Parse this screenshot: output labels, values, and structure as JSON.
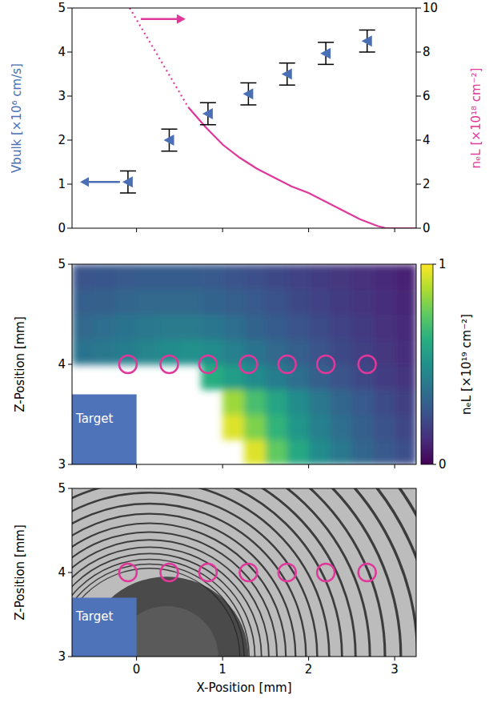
{
  "chart_data": [
    {
      "type": "scatter",
      "xlim": [
        -0.75,
        3.25
      ],
      "xticks": [
        0,
        1,
        2,
        3
      ],
      "tick_labels": "y",
      "ylabel": "Vbulk [×10⁶ cm/s]",
      "ylim": [
        0,
        5
      ],
      "yticks": [
        0,
        1,
        2,
        3,
        4,
        5
      ],
      "y2label": "nₑL [×10¹⁸ cm⁻²]",
      "y2lim": [
        0,
        10
      ],
      "y2ticks": [
        0,
        2,
        4,
        6,
        8,
        10
      ],
      "series": [
        {
          "type": "scatter",
          "color": "#4a6fb5",
          "marker": "triangle-left",
          "x": [
            -0.1,
            0.38,
            0.83,
            1.3,
            1.75,
            2.2,
            2.68
          ],
          "values": [
            1.05,
            2.0,
            2.6,
            3.05,
            3.5,
            3.97,
            4.25
          ],
          "error": [
            0.25,
            0.25,
            0.25,
            0.25,
            0.25,
            0.25,
            0.25
          ]
        },
        {
          "type": "line",
          "axis": "y2",
          "color": "#e0389a",
          "line_style": "dotted",
          "x": [
            -0.08,
            0.6
          ],
          "values": [
            10,
            5.5
          ]
        },
        {
          "type": "line",
          "axis": "y2",
          "color": "#e0389a",
          "line_style": "solid",
          "x": [
            0.6,
            0.8,
            1.0,
            1.2,
            1.4,
            1.6,
            1.8,
            2.0,
            2.2,
            2.4,
            2.6,
            2.8,
            2.9,
            3.25
          ],
          "values": [
            5.5,
            4.6,
            3.8,
            3.2,
            2.7,
            2.3,
            1.9,
            1.6,
            1.2,
            0.8,
            0.4,
            0.1,
            0,
            0
          ]
        }
      ]
    },
    {
      "type": "heatmap",
      "xlim": [
        -0.75,
        3.25
      ],
      "xticks": [
        0,
        1,
        2,
        3
      ],
      "ylim": [
        3,
        5
      ],
      "yticks": [
        3,
        4,
        5
      ],
      "tick_labels": "y",
      "ylabel": "Z-Position [mm]",
      "x": [
        -0.625,
        -0.375,
        -0.125,
        0.125,
        0.375,
        0.625,
        0.875,
        1.125,
        1.375,
        1.625,
        1.875,
        2.125,
        2.375,
        2.625,
        2.875,
        3.125
      ],
      "y": [
        3.125,
        3.375,
        3.625,
        3.875,
        4.125,
        4.375,
        4.625,
        4.875
      ],
      "values": [
        [
          null,
          null,
          null,
          null,
          null,
          null,
          null,
          null,
          0.95,
          0.75,
          0.6,
          0.48,
          0.4,
          0.33,
          0.28,
          0.24
        ],
        [
          null,
          null,
          null,
          null,
          null,
          null,
          null,
          0.95,
          0.8,
          0.65,
          0.52,
          0.43,
          0.36,
          0.3,
          0.25,
          0.21
        ],
        [
          null,
          null,
          null,
          null,
          null,
          null,
          null,
          0.85,
          0.7,
          0.58,
          0.48,
          0.4,
          0.33,
          0.28,
          0.23,
          0.19
        ],
        [
          null,
          null,
          null,
          null,
          null,
          null,
          0.62,
          0.55,
          0.48,
          0.42,
          0.36,
          0.31,
          0.26,
          0.22,
          0.18,
          0.15
        ],
        [
          0.38,
          0.4,
          0.42,
          0.45,
          0.48,
          0.5,
          0.48,
          0.43,
          0.38,
          0.34,
          0.3,
          0.26,
          0.22,
          0.19,
          0.16,
          0.13
        ],
        [
          0.34,
          0.36,
          0.38,
          0.4,
          0.41,
          0.41,
          0.39,
          0.36,
          0.32,
          0.29,
          0.26,
          0.23,
          0.2,
          0.17,
          0.14,
          0.12
        ],
        [
          0.3,
          0.31,
          0.33,
          0.34,
          0.34,
          0.34,
          0.32,
          0.3,
          0.28,
          0.25,
          0.22,
          0.2,
          0.17,
          0.15,
          0.13,
          0.11
        ],
        [
          0.26,
          0.27,
          0.28,
          0.29,
          0.29,
          0.29,
          0.28,
          0.26,
          0.24,
          0.22,
          0.2,
          0.18,
          0.16,
          0.14,
          0.12,
          0.1
        ]
      ],
      "colorbar": {
        "label": "nₑL [×10¹⁹ cm⁻²]",
        "range": [
          0,
          1
        ],
        "ticks": [
          0,
          1
        ]
      },
      "target": {
        "label": "Target",
        "color": "#4f73b8",
        "x": [
          -0.75,
          0
        ],
        "y": [
          3,
          3.7
        ]
      },
      "circles": {
        "color": "#e0389a",
        "x": [
          -0.1,
          0.38,
          0.83,
          1.3,
          1.75,
          2.2,
          2.68
        ],
        "y": [
          4,
          4,
          4,
          4,
          4,
          4,
          4
        ]
      }
    },
    {
      "type": "image",
      "xlim": [
        -0.75,
        3.25
      ],
      "xticks": [
        0,
        1,
        2,
        3
      ],
      "ylim": [
        3,
        5
      ],
      "yticks": [
        3,
        4,
        5
      ],
      "xlabel": "X-Position [mm]",
      "ylabel": "Z-Position [mm]",
      "target": {
        "label": "Target",
        "color": "#4f73b8",
        "x": [
          -0.75,
          0
        ],
        "y": [
          3,
          3.7
        ]
      },
      "circles": {
        "color": "#e0389a",
        "x": [
          -0.1,
          0.38,
          0.83,
          1.3,
          1.75,
          2.2,
          2.68
        ],
        "y": [
          4,
          4,
          4,
          4,
          4,
          4,
          4
        ]
      }
    }
  ]
}
